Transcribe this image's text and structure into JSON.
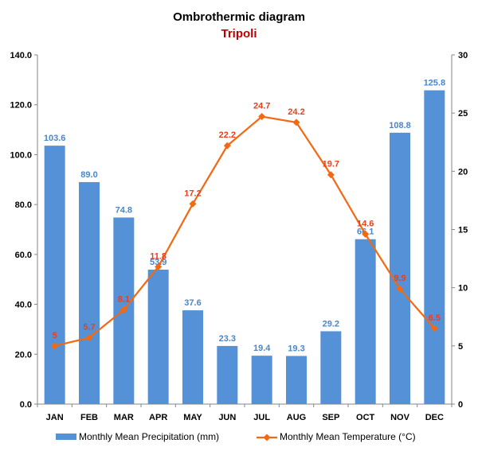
{
  "chart_data": {
    "type": "bar",
    "title": "Ombrothermic diagram",
    "subtitle": "Tripoli",
    "categories": [
      "JAN",
      "FEB",
      "MAR",
      "APR",
      "MAY",
      "JUN",
      "JUL",
      "AUG",
      "SEP",
      "OCT",
      "NOV",
      "DEC"
    ],
    "series": [
      {
        "name": "Monthly Mean Precipitation (mm)",
        "type": "bar",
        "axis": "left",
        "color": "#5591d6",
        "values": [
          103.6,
          89.0,
          74.8,
          53.9,
          37.6,
          23.3,
          19.4,
          19.3,
          29.2,
          66.1,
          108.8,
          125.8
        ],
        "labels": [
          "103.6",
          "89.0",
          "74.8",
          "53.9",
          "37.6",
          "23.3",
          "19.4",
          "19.3",
          "29.2",
          "66.1",
          "108.8",
          "125.8"
        ]
      },
      {
        "name": "Monthly Mean Temperature (°C)",
        "type": "line",
        "axis": "right",
        "color": "#f16a13",
        "label_color": "#e8401c",
        "values": [
          5,
          5.7,
          8.1,
          11.8,
          17.2,
          22.2,
          24.7,
          24.2,
          19.7,
          14.6,
          9.9,
          6.5
        ],
        "labels": [
          "5",
          "5.7",
          "8.1",
          "11.8",
          "17.2",
          "22.2",
          "24.7",
          "24.2",
          "19.7",
          "14.6",
          "9.9",
          "6.5"
        ]
      }
    ],
    "y_left": {
      "min": 0,
      "max": 140,
      "step": 20,
      "tick_labels": [
        "0.0",
        "20.0",
        "40.0",
        "60.0",
        "80.0",
        "100.0",
        "120.0",
        "140.0"
      ]
    },
    "y_right": {
      "min": 0,
      "max": 30,
      "step": 5,
      "tick_labels": [
        "0",
        "5",
        "10",
        "15",
        "20",
        "25",
        "30"
      ]
    },
    "grid": false,
    "legend_position": "bottom"
  }
}
